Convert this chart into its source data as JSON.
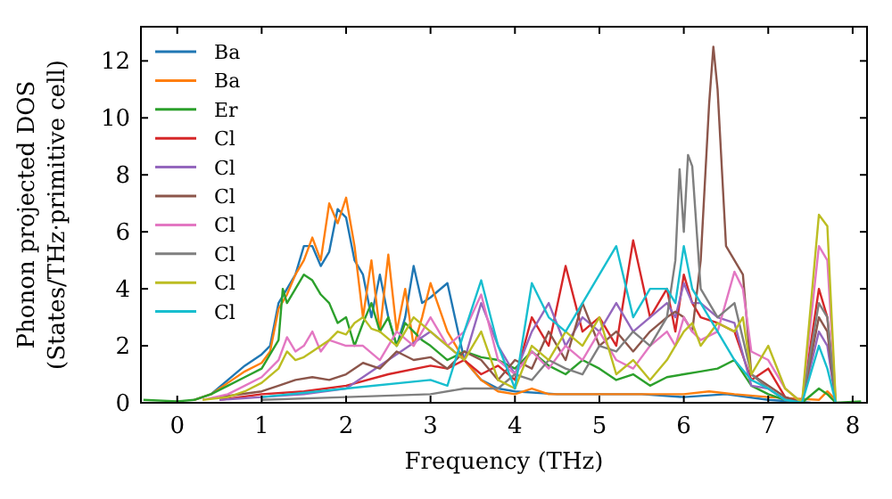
{
  "chart_data": {
    "type": "line",
    "xlabel": "Frequency (THz)",
    "ylabel": "Phonon projected DOS\n(States/THz·primitive cell)",
    "xlim": [
      -0.43,
      8.17
    ],
    "ylim": [
      0,
      13.2
    ],
    "xticks": [
      0,
      1,
      2,
      3,
      4,
      5,
      6,
      7,
      8
    ],
    "yticks": [
      0,
      2,
      4,
      6,
      8,
      10,
      12
    ],
    "legend": "top left",
    "grid": false,
    "series": [
      {
        "name": "Ba",
        "color": "#1f77b4",
        "x": [
          0.2,
          0.4,
          0.6,
          0.8,
          1.0,
          1.1,
          1.2,
          1.3,
          1.4,
          1.5,
          1.6,
          1.7,
          1.8,
          1.9,
          2.0,
          2.1,
          2.2,
          2.3,
          2.4,
          2.5,
          2.6,
          2.7,
          2.8,
          2.9,
          3.0,
          3.2,
          3.4,
          3.6,
          3.8,
          4.0,
          4.5,
          5.0,
          5.5,
          6.0,
          6.5,
          7.0,
          7.5
        ],
        "values": [
          0.1,
          0.3,
          0.8,
          1.3,
          1.7,
          2.0,
          3.5,
          4.0,
          4.5,
          5.5,
          5.5,
          4.8,
          5.3,
          6.8,
          6.5,
          5.0,
          4.5,
          3.0,
          4.5,
          3.0,
          2.0,
          3.0,
          4.8,
          3.5,
          3.7,
          4.2,
          1.5,
          0.8,
          0.5,
          0.4,
          0.3,
          0.3,
          0.3,
          0.2,
          0.3,
          0.1,
          0.0
        ]
      },
      {
        "name": "Ba",
        "color": "#ff7f0e",
        "x": [
          0.2,
          0.4,
          0.6,
          0.8,
          1.0,
          1.1,
          1.2,
          1.3,
          1.4,
          1.5,
          1.6,
          1.7,
          1.8,
          1.9,
          2.0,
          2.1,
          2.2,
          2.3,
          2.4,
          2.5,
          2.6,
          2.7,
          2.8,
          2.9,
          3.0,
          3.2,
          3.4,
          3.6,
          3.8,
          4.0,
          4.2,
          4.4,
          5.0,
          5.5,
          6.0,
          6.3,
          6.6,
          7.0,
          7.6,
          7.7,
          7.8
        ],
        "values": [
          0.1,
          0.3,
          0.7,
          1.1,
          1.4,
          1.8,
          3.3,
          3.8,
          4.5,
          5.0,
          5.8,
          5.0,
          7.0,
          6.3,
          7.2,
          5.5,
          3.0,
          5.0,
          2.5,
          5.2,
          2.5,
          4.0,
          2.0,
          3.0,
          4.2,
          2.5,
          1.5,
          0.8,
          0.4,
          0.3,
          0.5,
          0.3,
          0.3,
          0.3,
          0.3,
          0.4,
          0.3,
          0.2,
          0.1,
          0.4,
          0.1
        ]
      },
      {
        "name": "Er",
        "color": "#2ca02c",
        "x": [
          -0.4,
          0,
          0.2,
          0.4,
          0.6,
          0.8,
          1.0,
          1.2,
          1.25,
          1.3,
          1.4,
          1.5,
          1.6,
          1.7,
          1.8,
          1.9,
          2.0,
          2.1,
          2.2,
          2.3,
          2.4,
          2.5,
          2.6,
          2.7,
          2.8,
          2.9,
          3.0,
          3.2,
          3.4,
          3.6,
          3.8,
          4.0,
          4.2,
          4.4,
          4.6,
          4.8,
          5.0,
          5.2,
          5.4,
          5.6,
          5.8,
          6.0,
          6.2,
          6.4,
          6.6,
          6.8,
          7.0,
          7.2,
          7.4,
          7.6,
          7.7,
          7.8,
          8.1
        ],
        "values": [
          0.1,
          0.05,
          0.1,
          0.3,
          0.6,
          0.9,
          1.2,
          2.2,
          4.0,
          3.5,
          4.0,
          4.5,
          4.3,
          3.8,
          3.5,
          2.8,
          3.0,
          2.0,
          2.8,
          3.5,
          2.5,
          3.0,
          2.0,
          2.8,
          2.5,
          2.2,
          2.0,
          1.5,
          1.8,
          1.6,
          1.5,
          1.2,
          1.8,
          1.3,
          1.0,
          1.5,
          1.2,
          0.8,
          1.0,
          0.6,
          0.9,
          1.0,
          1.1,
          1.2,
          1.5,
          0.6,
          0.3,
          0.1,
          0.0,
          0.5,
          0.3,
          0.0,
          0.05
        ]
      },
      {
        "name": "Cl",
        "color": "#d62728",
        "x": [
          0.5,
          1.0,
          1.5,
          2.0,
          2.5,
          3.0,
          3.2,
          3.4,
          3.6,
          3.8,
          4.0,
          4.2,
          4.4,
          4.6,
          4.8,
          5.0,
          5.2,
          5.4,
          5.6,
          5.8,
          5.9,
          6.0,
          6.1,
          6.2,
          6.4,
          6.6,
          6.8,
          7.0,
          7.2,
          7.4,
          7.6,
          7.7,
          7.8
        ],
        "values": [
          0.1,
          0.3,
          0.4,
          0.6,
          1.0,
          1.3,
          1.2,
          1.5,
          1.0,
          1.3,
          0.8,
          3.0,
          2.0,
          4.8,
          2.5,
          3.0,
          2.0,
          5.7,
          3.0,
          4.0,
          2.5,
          4.5,
          3.5,
          3.0,
          2.8,
          2.5,
          0.8,
          1.2,
          0.2,
          0.0,
          4.0,
          3.0,
          0.0
        ]
      },
      {
        "name": "Cl",
        "color": "#9467bd",
        "x": [
          0.5,
          1.0,
          1.5,
          2.0,
          2.5,
          3.0,
          3.2,
          3.4,
          3.6,
          3.8,
          4.0,
          4.2,
          4.4,
          4.6,
          4.8,
          5.0,
          5.2,
          5.4,
          5.6,
          5.8,
          5.9,
          6.0,
          6.1,
          6.2,
          6.4,
          6.6,
          6.8,
          7.0,
          7.2,
          7.4,
          7.6,
          7.7,
          7.8
        ],
        "values": [
          0.1,
          0.2,
          0.3,
          0.5,
          1.5,
          2.5,
          2.0,
          1.5,
          3.5,
          2.0,
          1.0,
          2.5,
          3.5,
          2.0,
          3.0,
          2.5,
          3.5,
          2.5,
          3.0,
          3.5,
          3.0,
          4.2,
          3.5,
          3.5,
          3.0,
          2.8,
          0.6,
          0.5,
          0.1,
          0.0,
          2.5,
          2.0,
          0.0
        ]
      },
      {
        "name": "Cl",
        "color": "#8c564b",
        "x": [
          0.5,
          1.0,
          1.2,
          1.4,
          1.6,
          1.8,
          2.0,
          2.2,
          2.4,
          2.6,
          2.8,
          3.0,
          3.2,
          3.4,
          3.6,
          3.8,
          4.0,
          4.2,
          4.4,
          4.6,
          4.8,
          5.0,
          5.2,
          5.4,
          5.6,
          5.8,
          5.9,
          6.0,
          6.1,
          6.2,
          6.3,
          6.35,
          6.4,
          6.5,
          6.6,
          6.7,
          6.8,
          7.0,
          7.2,
          7.4,
          7.6,
          7.7,
          7.8
        ],
        "values": [
          0.2,
          0.4,
          0.6,
          0.8,
          0.9,
          0.8,
          1.0,
          1.4,
          1.2,
          1.8,
          1.5,
          1.6,
          1.2,
          1.8,
          1.5,
          0.8,
          1.5,
          1.2,
          2.5,
          1.5,
          3.5,
          2.0,
          2.5,
          1.8,
          2.5,
          3.0,
          3.2,
          3.0,
          2.5,
          5.0,
          10.5,
          12.5,
          11.0,
          5.5,
          5.0,
          4.5,
          1.0,
          0.6,
          0.2,
          0.0,
          3.0,
          2.5,
          0.0
        ]
      },
      {
        "name": "Cl",
        "color": "#e377c2",
        "x": [
          0.3,
          0.6,
          0.8,
          1.0,
          1.2,
          1.3,
          1.4,
          1.5,
          1.6,
          1.7,
          1.8,
          2.0,
          2.2,
          2.4,
          2.6,
          2.8,
          3.0,
          3.2,
          3.4,
          3.6,
          3.8,
          4.0,
          4.2,
          4.4,
          4.6,
          4.8,
          5.0,
          5.2,
          5.4,
          5.6,
          5.8,
          5.9,
          6.0,
          6.1,
          6.2,
          6.4,
          6.6,
          6.7,
          6.8,
          7.0,
          7.2,
          7.4,
          7.6,
          7.7,
          7.8
        ],
        "values": [
          0.1,
          0.3,
          0.6,
          0.9,
          1.5,
          2.3,
          1.8,
          2.0,
          2.5,
          1.8,
          2.2,
          2.0,
          2.0,
          1.5,
          2.5,
          2.0,
          3.0,
          2.0,
          2.5,
          3.8,
          1.5,
          1.0,
          1.8,
          1.2,
          2.0,
          1.5,
          2.5,
          1.5,
          1.2,
          2.0,
          2.5,
          2.0,
          3.0,
          2.5,
          2.2,
          2.5,
          4.6,
          4.0,
          1.8,
          1.5,
          0.5,
          0.0,
          5.5,
          5.0,
          0.0
        ]
      },
      {
        "name": "Cl",
        "color": "#7f7f7f",
        "x": [
          1.0,
          2.0,
          3.0,
          3.4,
          3.8,
          4.0,
          4.2,
          4.4,
          4.6,
          4.8,
          5.0,
          5.2,
          5.4,
          5.6,
          5.8,
          5.9,
          5.95,
          6.0,
          6.05,
          6.1,
          6.2,
          6.4,
          6.6,
          6.8,
          7.0,
          7.2,
          7.4,
          7.6,
          7.7,
          7.8
        ],
        "values": [
          0.1,
          0.2,
          0.3,
          0.5,
          0.5,
          1.0,
          0.8,
          1.5,
          1.2,
          1.0,
          2.0,
          1.8,
          2.5,
          2.0,
          3.0,
          5.0,
          8.2,
          6.0,
          8.7,
          8.3,
          4.0,
          3.0,
          3.5,
          1.0,
          0.5,
          0.1,
          0.0,
          3.5,
          3.0,
          0.0
        ]
      },
      {
        "name": "Cl",
        "color": "#bcbd22",
        "x": [
          0.3,
          0.6,
          0.8,
          1.0,
          1.2,
          1.3,
          1.4,
          1.5,
          1.6,
          1.8,
          1.9,
          2.0,
          2.1,
          2.2,
          2.3,
          2.4,
          2.6,
          2.8,
          3.0,
          3.2,
          3.4,
          3.6,
          3.8,
          4.0,
          4.2,
          4.4,
          4.6,
          4.8,
          5.0,
          5.2,
          5.4,
          5.6,
          5.8,
          6.0,
          6.1,
          6.2,
          6.4,
          6.6,
          6.7,
          6.8,
          7.0,
          7.2,
          7.4,
          7.6,
          7.7,
          7.8
        ],
        "values": [
          0.1,
          0.2,
          0.4,
          0.7,
          1.2,
          1.8,
          1.5,
          1.6,
          1.8,
          2.2,
          2.5,
          2.4,
          2.8,
          3.0,
          2.6,
          2.5,
          2.0,
          3.0,
          2.5,
          2.0,
          1.5,
          2.5,
          0.8,
          0.5,
          2.0,
          1.5,
          2.5,
          2.0,
          3.0,
          1.0,
          1.5,
          0.8,
          1.5,
          2.5,
          2.8,
          2.0,
          2.8,
          2.5,
          3.0,
          1.0,
          2.0,
          0.5,
          0.0,
          6.6,
          6.2,
          0.0
        ]
      },
      {
        "name": "Cl",
        "color": "#17becf",
        "x": [
          1.0,
          2.0,
          3.0,
          3.2,
          3.4,
          3.6,
          3.8,
          4.0,
          4.2,
          4.4,
          4.6,
          4.8,
          5.0,
          5.2,
          5.4,
          5.6,
          5.8,
          5.9,
          6.0,
          6.1,
          6.2,
          6.4,
          6.6,
          6.8,
          7.0,
          7.2,
          7.4,
          7.6,
          7.7,
          7.8
        ],
        "values": [
          0.2,
          0.5,
          0.8,
          0.6,
          2.5,
          4.3,
          2.0,
          0.5,
          4.2,
          3.0,
          2.5,
          3.5,
          4.5,
          5.5,
          3.0,
          4.0,
          4.0,
          3.5,
          5.5,
          4.0,
          3.5,
          2.5,
          1.5,
          0.8,
          0.5,
          0.1,
          0.0,
          2.0,
          1.2,
          0.0
        ]
      }
    ]
  }
}
